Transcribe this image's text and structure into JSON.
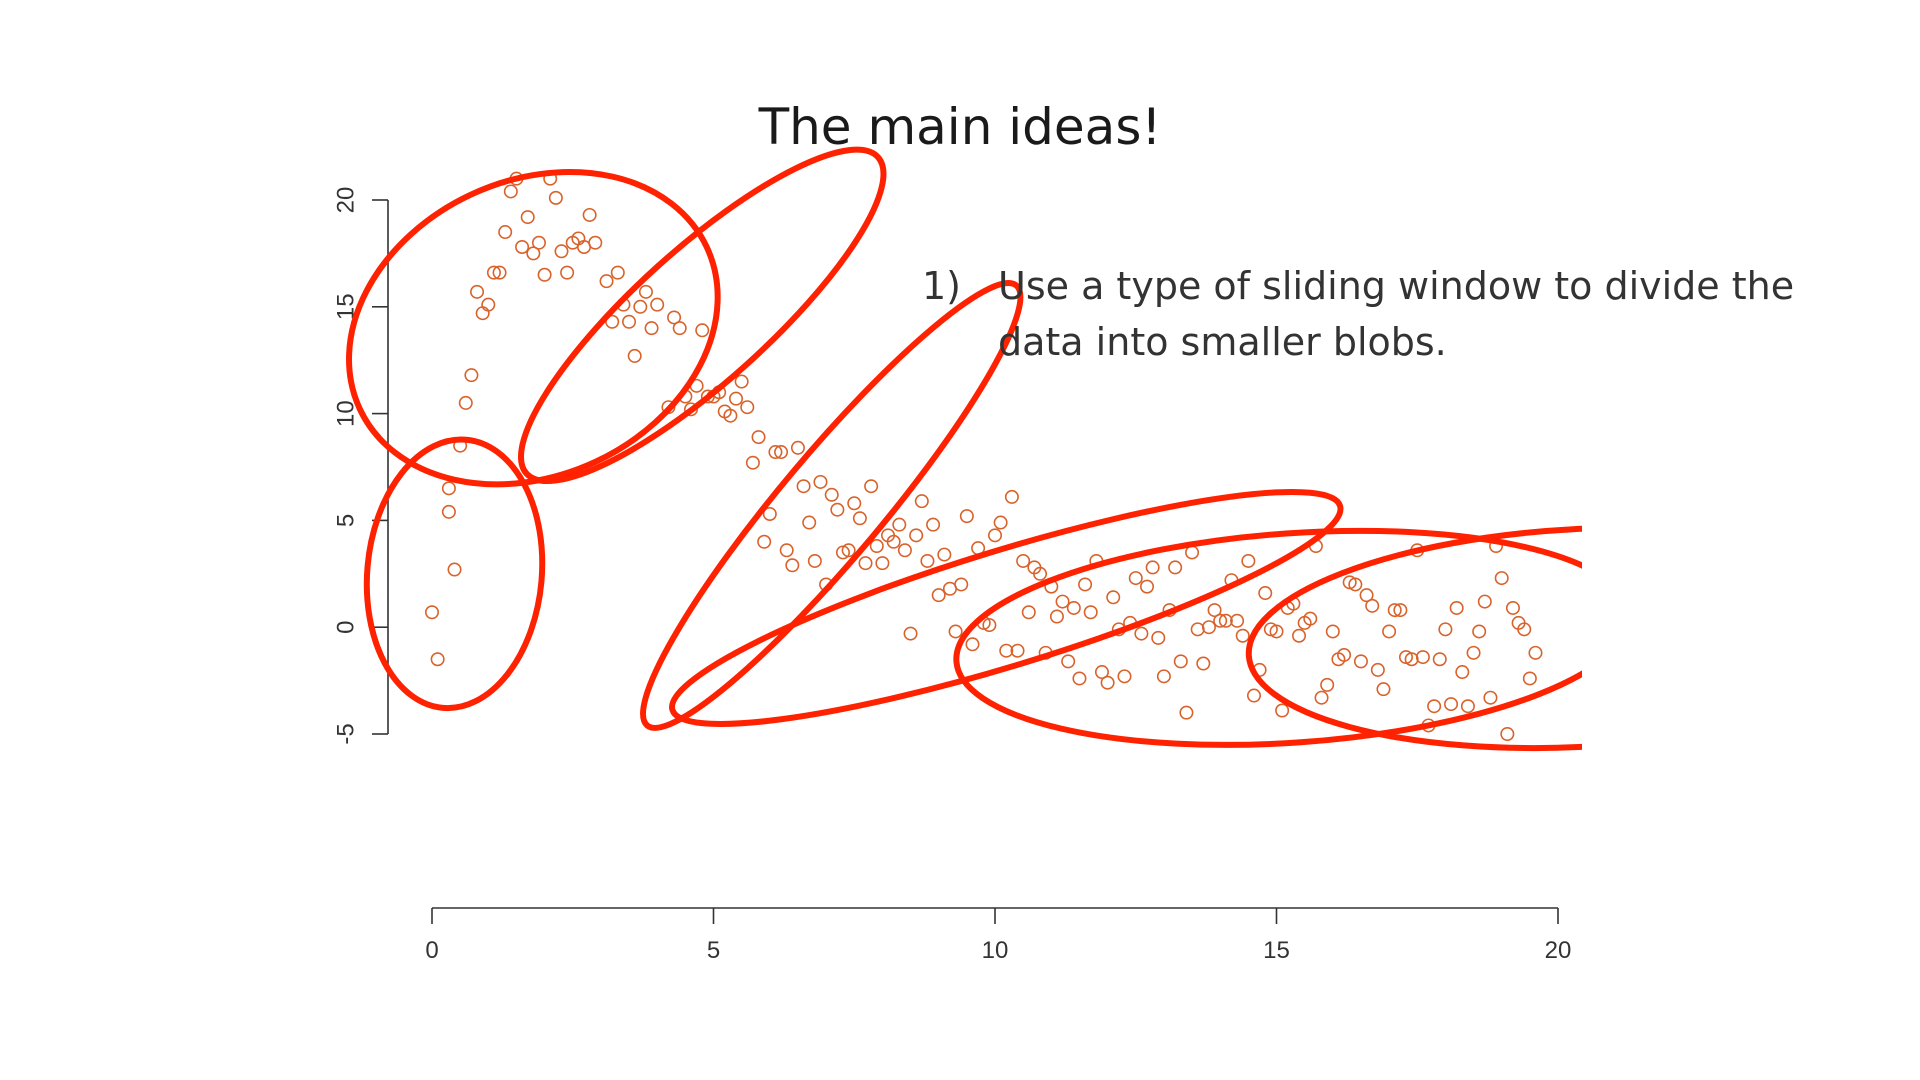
{
  "slide": {
    "title": "The main ideas!",
    "bullet_number": "1)",
    "bullet_text": "Use a type of sliding window to divide the data into smaller blobs."
  },
  "colors": {
    "points": "#d9622b",
    "windows": "#ff2200",
    "axis": "#333333"
  },
  "chart_data": {
    "type": "scatter",
    "title": "",
    "xlabel": "",
    "ylabel": "",
    "xlim": [
      0,
      20
    ],
    "ylim": [
      -5,
      20
    ],
    "x_ticks": [
      0,
      5,
      10,
      15,
      20
    ],
    "y_ticks": [
      -5,
      0,
      5,
      10,
      15,
      20
    ],
    "grid": false,
    "marker": "open-circle",
    "points": [
      [
        0.0,
        0.7
      ],
      [
        0.1,
        -1.5
      ],
      [
        0.3,
        6.5
      ],
      [
        0.3,
        5.4
      ],
      [
        0.4,
        2.7
      ],
      [
        0.5,
        8.5
      ],
      [
        0.6,
        10.5
      ],
      [
        0.7,
        11.8
      ],
      [
        0.8,
        15.7
      ],
      [
        0.9,
        14.7
      ],
      [
        1.0,
        15.1
      ],
      [
        1.1,
        16.6
      ],
      [
        1.2,
        16.6
      ],
      [
        1.3,
        18.5
      ],
      [
        1.4,
        20.4
      ],
      [
        1.5,
        21.0
      ],
      [
        1.6,
        17.8
      ],
      [
        1.7,
        19.2
      ],
      [
        1.8,
        17.5
      ],
      [
        1.9,
        18.0
      ],
      [
        2.0,
        16.5
      ],
      [
        2.1,
        21.0
      ],
      [
        2.2,
        20.1
      ],
      [
        2.3,
        17.6
      ],
      [
        2.4,
        16.6
      ],
      [
        2.5,
        18.0
      ],
      [
        2.6,
        18.2
      ],
      [
        2.7,
        17.8
      ],
      [
        2.8,
        19.3
      ],
      [
        2.9,
        18.0
      ],
      [
        3.1,
        16.2
      ],
      [
        3.2,
        14.3
      ],
      [
        3.3,
        16.6
      ],
      [
        3.4,
        15.1
      ],
      [
        3.5,
        14.3
      ],
      [
        3.6,
        12.7
      ],
      [
        3.7,
        15.0
      ],
      [
        3.8,
        15.7
      ],
      [
        3.9,
        14.0
      ],
      [
        4.0,
        15.1
      ],
      [
        4.2,
        10.3
      ],
      [
        4.3,
        14.5
      ],
      [
        4.4,
        14.0
      ],
      [
        4.5,
        10.8
      ],
      [
        4.6,
        10.2
      ],
      [
        4.7,
        11.3
      ],
      [
        4.8,
        13.9
      ],
      [
        4.9,
        10.8
      ],
      [
        5.0,
        10.8
      ],
      [
        5.1,
        11.0
      ],
      [
        5.2,
        10.1
      ],
      [
        5.3,
        9.9
      ],
      [
        5.4,
        10.7
      ],
      [
        5.5,
        11.5
      ],
      [
        5.6,
        10.3
      ],
      [
        5.7,
        7.7
      ],
      [
        5.8,
        8.9
      ],
      [
        5.9,
        4.0
      ],
      [
        6.0,
        5.3
      ],
      [
        6.1,
        8.2
      ],
      [
        6.2,
        8.2
      ],
      [
        6.3,
        3.6
      ],
      [
        6.4,
        2.9
      ],
      [
        6.5,
        8.4
      ],
      [
        6.6,
        6.6
      ],
      [
        6.7,
        4.9
      ],
      [
        6.8,
        3.1
      ],
      [
        6.9,
        6.8
      ],
      [
        7.0,
        2.0
      ],
      [
        7.1,
        6.2
      ],
      [
        7.2,
        5.5
      ],
      [
        7.3,
        3.5
      ],
      [
        7.4,
        3.6
      ],
      [
        7.5,
        5.8
      ],
      [
        7.6,
        5.1
      ],
      [
        7.7,
        3.0
      ],
      [
        7.8,
        6.6
      ],
      [
        7.9,
        3.8
      ],
      [
        8.0,
        3.0
      ],
      [
        8.1,
        4.3
      ],
      [
        8.2,
        4.0
      ],
      [
        8.3,
        4.8
      ],
      [
        8.4,
        3.6
      ],
      [
        8.5,
        -0.3
      ],
      [
        8.6,
        4.3
      ],
      [
        8.7,
        5.9
      ],
      [
        8.8,
        3.1
      ],
      [
        8.9,
        4.8
      ],
      [
        9.0,
        1.5
      ],
      [
        9.1,
        3.4
      ],
      [
        9.2,
        1.8
      ],
      [
        9.3,
        -0.2
      ],
      [
        9.4,
        2.0
      ],
      [
        9.5,
        5.2
      ],
      [
        9.6,
        -0.8
      ],
      [
        9.7,
        3.7
      ],
      [
        9.8,
        0.2
      ],
      [
        9.9,
        0.1
      ],
      [
        10.0,
        4.3
      ],
      [
        10.1,
        4.9
      ],
      [
        10.2,
        -1.1
      ],
      [
        10.3,
        6.1
      ],
      [
        10.4,
        -1.1
      ],
      [
        10.5,
        3.1
      ],
      [
        10.6,
        0.7
      ],
      [
        10.7,
        2.8
      ],
      [
        10.8,
        2.5
      ],
      [
        10.9,
        -1.2
      ],
      [
        11.0,
        1.9
      ],
      [
        11.1,
        0.5
      ],
      [
        11.2,
        1.2
      ],
      [
        11.3,
        -1.6
      ],
      [
        11.4,
        0.9
      ],
      [
        11.5,
        -2.4
      ],
      [
        11.6,
        2.0
      ],
      [
        11.7,
        0.7
      ],
      [
        11.8,
        3.1
      ],
      [
        11.9,
        -2.1
      ],
      [
        12.0,
        -2.6
      ],
      [
        12.1,
        1.4
      ],
      [
        12.2,
        -0.1
      ],
      [
        12.3,
        -2.3
      ],
      [
        12.4,
        0.2
      ],
      [
        12.5,
        2.3
      ],
      [
        12.6,
        -0.3
      ],
      [
        12.7,
        1.9
      ],
      [
        12.8,
        2.8
      ],
      [
        12.9,
        -0.5
      ],
      [
        13.0,
        -2.3
      ],
      [
        13.1,
        0.8
      ],
      [
        13.2,
        2.8
      ],
      [
        13.3,
        -1.6
      ],
      [
        13.4,
        -4.0
      ],
      [
        13.5,
        3.5
      ],
      [
        13.6,
        -0.1
      ],
      [
        13.7,
        -1.7
      ],
      [
        13.8,
        0.0
      ],
      [
        13.9,
        0.8
      ],
      [
        14.0,
        0.3
      ],
      [
        14.1,
        0.3
      ],
      [
        14.2,
        2.2
      ],
      [
        14.3,
        0.3
      ],
      [
        14.4,
        -0.4
      ],
      [
        14.5,
        3.1
      ],
      [
        14.6,
        -3.2
      ],
      [
        14.7,
        -2.0
      ],
      [
        14.8,
        1.6
      ],
      [
        14.9,
        -0.1
      ],
      [
        15.0,
        -0.2
      ],
      [
        15.1,
        -3.9
      ],
      [
        15.2,
        0.9
      ],
      [
        15.3,
        1.1
      ],
      [
        15.4,
        -0.4
      ],
      [
        15.5,
        0.2
      ],
      [
        15.6,
        0.4
      ],
      [
        15.7,
        3.8
      ],
      [
        15.8,
        -3.3
      ],
      [
        15.9,
        -2.7
      ],
      [
        16.0,
        -0.2
      ],
      [
        16.1,
        -1.5
      ],
      [
        16.2,
        -1.3
      ],
      [
        16.3,
        2.1
      ],
      [
        16.4,
        2.0
      ],
      [
        16.5,
        -1.6
      ],
      [
        16.6,
        1.5
      ],
      [
        16.7,
        1.0
      ],
      [
        16.8,
        -2.0
      ],
      [
        16.9,
        -2.9
      ],
      [
        17.0,
        -0.2
      ],
      [
        17.1,
        0.8
      ],
      [
        17.2,
        0.8
      ],
      [
        17.3,
        -1.4
      ],
      [
        17.4,
        -1.5
      ],
      [
        17.5,
        3.6
      ],
      [
        17.6,
        -1.4
      ],
      [
        17.7,
        -4.6
      ],
      [
        17.8,
        -3.7
      ],
      [
        17.9,
        -1.5
      ],
      [
        18.0,
        -0.1
      ],
      [
        18.1,
        -3.6
      ],
      [
        18.2,
        0.9
      ],
      [
        18.3,
        -2.1
      ],
      [
        18.4,
        -3.7
      ],
      [
        18.5,
        -1.2
      ],
      [
        18.6,
        -0.2
      ],
      [
        18.7,
        1.2
      ],
      [
        18.8,
        -3.3
      ],
      [
        18.9,
        3.8
      ],
      [
        19.0,
        2.3
      ],
      [
        19.1,
        -5.0
      ],
      [
        19.2,
        0.9
      ],
      [
        19.3,
        0.2
      ],
      [
        19.4,
        -0.1
      ],
      [
        19.5,
        -2.4
      ],
      [
        19.6,
        -1.2
      ]
    ],
    "windows": [
      {
        "center": [
          0.4,
          2.5
        ],
        "rx": 1.55,
        "ry": 6.3,
        "angle": 5
      },
      {
        "center": [
          1.8,
          14.0
        ],
        "rx": 3.4,
        "ry": 6.9,
        "angle": -25
      },
      {
        "center": [
          4.8,
          14.6
        ],
        "rx": 4.2,
        "ry": 3.1,
        "angle": -42
      },
      {
        "center": [
          7.1,
          5.7
        ],
        "rx": 5.1,
        "ry": 2.4,
        "angle": -50
      },
      {
        "center": [
          10.2,
          0.9
        ],
        "rx": 6.2,
        "ry": 2.7,
        "angle": -17
      },
      {
        "center": [
          15.3,
          -0.5
        ],
        "rx": 6.0,
        "ry": 4.9,
        "angle": -4
      },
      {
        "center": [
          20.4,
          -0.5
        ],
        "rx": 5.9,
        "ry": 5.1,
        "angle": -3
      }
    ]
  }
}
